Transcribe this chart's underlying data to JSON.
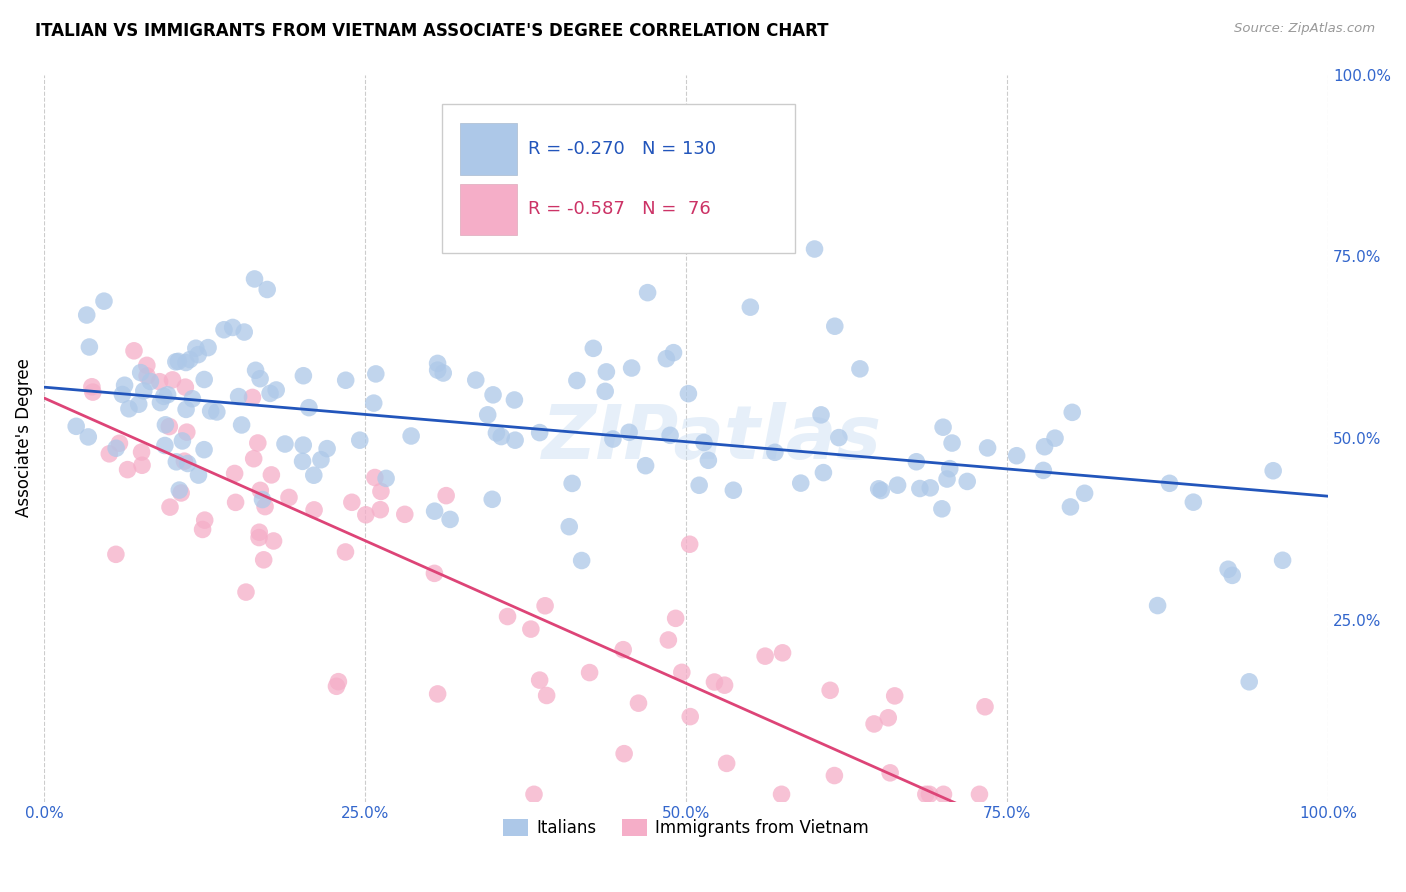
{
  "title": "ITALIAN VS IMMIGRANTS FROM VIETNAM ASSOCIATE'S DEGREE CORRELATION CHART",
  "source": "Source: ZipAtlas.com",
  "ylabel": "Associate's Degree",
  "watermark": "ZIPatlas",
  "blue_R": -0.27,
  "blue_N": 130,
  "pink_R": -0.587,
  "pink_N": 76,
  "blue_color": "#adc8e8",
  "pink_color": "#f5aec8",
  "blue_line_color": "#2255bb",
  "pink_line_color": "#dd4477",
  "xlim": [
    0.0,
    1.0
  ],
  "ylim": [
    0.0,
    1.0
  ],
  "xtick_labels": [
    "0.0%",
    "25.0%",
    "50.0%",
    "75.0%",
    "100.0%"
  ],
  "xtick_values": [
    0.0,
    0.25,
    0.5,
    0.75,
    1.0
  ],
  "ytick_labels_right": [
    "100.0%",
    "75.0%",
    "50.0%",
    "25.0%"
  ],
  "ytick_values_right": [
    1.0,
    0.75,
    0.5,
    0.25
  ],
  "legend_italians": "Italians",
  "legend_vietnam": "Immigrants from Vietnam",
  "blue_line_y_start": 0.57,
  "blue_line_y_end": 0.42,
  "pink_line_y_start": 0.555,
  "pink_line_y_end": -0.01
}
